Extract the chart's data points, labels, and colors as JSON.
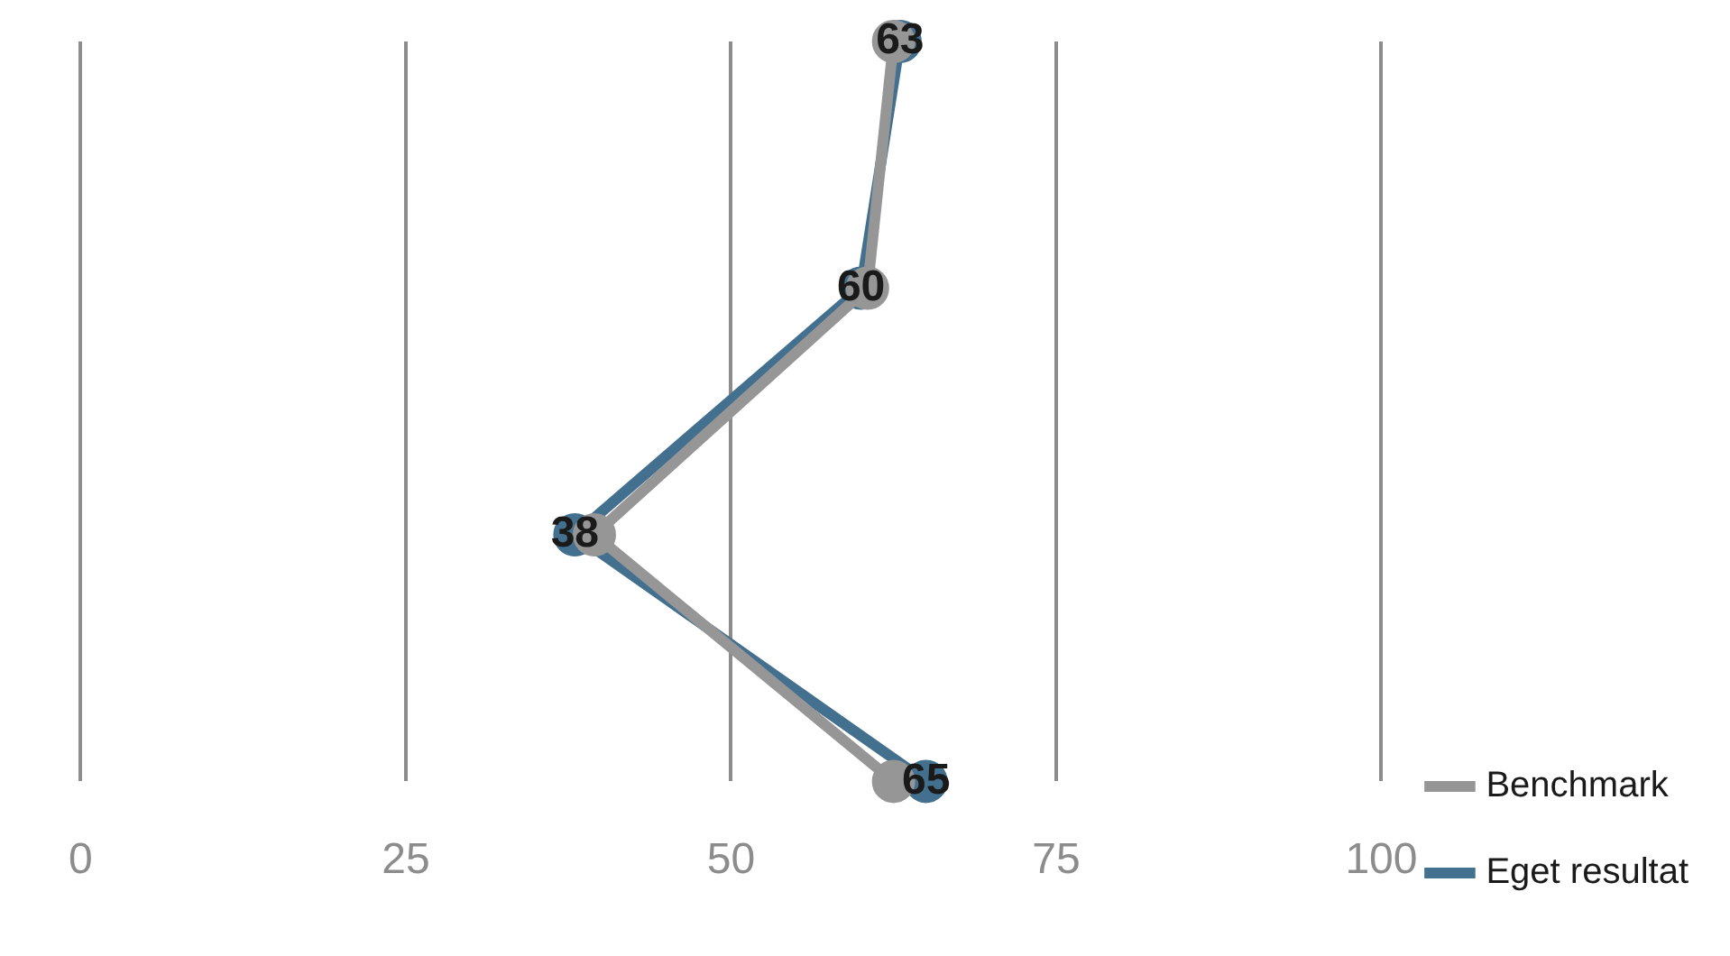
{
  "chart_data": {
    "type": "line",
    "orientation": "horizontal",
    "categories": [
      null,
      null,
      null,
      null
    ],
    "series": [
      {
        "name": "Benchmark",
        "color": "#969696",
        "values": [
          62.5,
          60.5,
          39.5,
          62.5
        ]
      },
      {
        "name": "Eget resultat",
        "color": "#44708f",
        "values": [
          63,
          60,
          38,
          65
        ],
        "value_labels": [
          "63",
          "60",
          "38",
          "65"
        ]
      }
    ],
    "xlim": [
      0,
      100
    ],
    "xticks": [
      0,
      25,
      50,
      75,
      100
    ],
    "grid": "x",
    "legend": "bottom right",
    "marker": "circle"
  }
}
